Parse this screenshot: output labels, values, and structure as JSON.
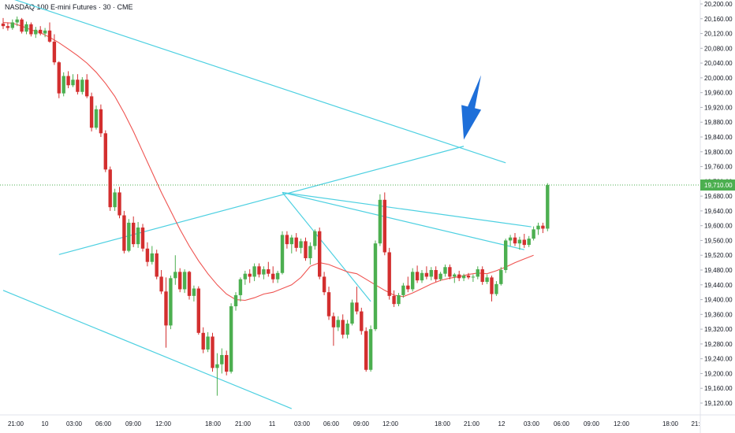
{
  "header": {
    "symbol_title": "NASDAQ 100 E-mini Futures · 30 · CME"
  },
  "colors": {
    "up": "#4caf50",
    "down": "#d32f2f",
    "ma": "#ef5350",
    "trendline": "#4dd0e1",
    "current_price_line": "#4caf50",
    "arrow": "#1e6fd9",
    "axis_border": "#e0e3eb",
    "text": "#131722"
  },
  "chart_data": {
    "type": "candlestick",
    "title": "NASDAQ 100 E-mini Futures · 30 · CME",
    "y_ticks": [
      "20,200.00",
      "20,160.00",
      "20,120.00",
      "20,080.00",
      "20,040.00",
      "20,000.00",
      "19,960.00",
      "19,920.00",
      "19,880.00",
      "19,840.00",
      "19,800.00",
      "19,760.00",
      "19,720.00",
      "19,680.00",
      "19,640.00",
      "19,600.00",
      "19,560.00",
      "19,520.00",
      "19,480.00",
      "19,440.00",
      "19,400.00",
      "19,360.00",
      "19,320.00",
      "19,280.00",
      "19,240.00",
      "19,200.00",
      "19,160.00",
      "19,120.00"
    ],
    "x_ticks": [
      "21:00",
      "10",
      "03:00",
      "06:00",
      "09:00",
      "12:00",
      "18:00",
      "21:00",
      "11",
      "03:00",
      "06:00",
      "09:00",
      "12:00",
      "18:00",
      "21:00",
      "12",
      "03:00",
      "06:00",
      "09:00",
      "12:00",
      "18:00",
      "21:"
    ],
    "ylim": [
      19080,
      20220
    ],
    "current_price": "19,710.00",
    "candles": [
      [
        20147,
        20162,
        20132,
        20140
      ],
      [
        20140,
        20150,
        20128,
        20135
      ],
      [
        20135,
        20158,
        20130,
        20150
      ],
      [
        20150,
        20166,
        20140,
        20158
      ],
      [
        20158,
        20162,
        20120,
        20125
      ],
      [
        20125,
        20152,
        20118,
        20145
      ],
      [
        20145,
        20150,
        20112,
        20118
      ],
      [
        20118,
        20138,
        20108,
        20130
      ],
      [
        20130,
        20140,
        20115,
        20120
      ],
      [
        20120,
        20135,
        20110,
        20128
      ],
      [
        20128,
        20150,
        20095,
        20098
      ],
      [
        20098,
        20118,
        20035,
        20042
      ],
      [
        20042,
        20045,
        19945,
        19958
      ],
      [
        19958,
        20015,
        19950,
        20005
      ],
      [
        20005,
        20018,
        19972,
        19980
      ],
      [
        19980,
        20010,
        19975,
        19995
      ],
      [
        19995,
        20010,
        19955,
        19962
      ],
      [
        19962,
        20002,
        19955,
        19995
      ],
      [
        19995,
        20010,
        19945,
        19950
      ],
      [
        19950,
        19960,
        19855,
        19865
      ],
      [
        19865,
        19925,
        19860,
        19915
      ],
      [
        19915,
        19928,
        19840,
        19850
      ],
      [
        19850,
        19858,
        19745,
        19752
      ],
      [
        19752,
        19760,
        19640,
        19650
      ],
      [
        19650,
        19700,
        19640,
        19690
      ],
      [
        19690,
        19705,
        19620,
        19628
      ],
      [
        19628,
        19640,
        19525,
        19532
      ],
      [
        19532,
        19618,
        19528,
        19608
      ],
      [
        19608,
        19625,
        19542,
        19550
      ],
      [
        19550,
        19610,
        19540,
        19595
      ],
      [
        19595,
        19605,
        19530,
        19538
      ],
      [
        19538,
        19555,
        19490,
        19502
      ],
      [
        19502,
        19545,
        19495,
        19525
      ],
      [
        19525,
        19535,
        19455,
        19462
      ],
      [
        19462,
        19480,
        19415,
        19422
      ],
      [
        19422,
        19460,
        19270,
        19330
      ],
      [
        19330,
        19465,
        19320,
        19458
      ],
      [
        19458,
        19520,
        19440,
        19475
      ],
      [
        19475,
        19485,
        19420,
        19428
      ],
      [
        19428,
        19482,
        19418,
        19475
      ],
      [
        19475,
        19478,
        19400,
        19410
      ],
      [
        19410,
        19438,
        19395,
        19430
      ],
      [
        19430,
        19436,
        19305,
        19310
      ],
      [
        19310,
        19325,
        19255,
        19265
      ],
      [
        19265,
        19312,
        19258,
        19300
      ],
      [
        19300,
        19310,
        19205,
        19215
      ],
      [
        19215,
        19255,
        19140,
        19225
      ],
      [
        19225,
        19268,
        19200,
        19250
      ],
      [
        19250,
        19262,
        19195,
        19205
      ],
      [
        19205,
        19390,
        19200,
        19382
      ],
      [
        19382,
        19420,
        19370,
        19412
      ],
      [
        19412,
        19460,
        19395,
        19455
      ],
      [
        19455,
        19478,
        19440,
        19470
      ],
      [
        19470,
        19482,
        19445,
        19462
      ],
      [
        19462,
        19498,
        19450,
        19490
      ],
      [
        19490,
        19498,
        19460,
        19468
      ],
      [
        19468,
        19490,
        19455,
        19482
      ],
      [
        19482,
        19502,
        19462,
        19470
      ],
      [
        19470,
        19490,
        19445,
        19455
      ],
      [
        19455,
        19478,
        19445,
        19472
      ],
      [
        19472,
        19585,
        19468,
        19575
      ],
      [
        19575,
        19585,
        19538,
        19550
      ],
      [
        19550,
        19575,
        19525,
        19568
      ],
      [
        19568,
        19580,
        19530,
        19540
      ],
      [
        19540,
        19565,
        19525,
        19558
      ],
      [
        19558,
        19568,
        19505,
        19512
      ],
      [
        19512,
        19555,
        19495,
        19545
      ],
      [
        19545,
        19590,
        19535,
        19585
      ],
      [
        19585,
        19595,
        19455,
        19462
      ],
      [
        19462,
        19475,
        19412,
        19420
      ],
      [
        19420,
        19435,
        19345,
        19355
      ],
      [
        19355,
        19365,
        19275,
        19325
      ],
      [
        19325,
        19355,
        19315,
        19345
      ],
      [
        19345,
        19360,
        19295,
        19305
      ],
      [
        19305,
        19345,
        19295,
        19335
      ],
      [
        19335,
        19400,
        19330,
        19392
      ],
      [
        19392,
        19435,
        19360,
        19368
      ],
      [
        19368,
        19378,
        19305,
        19315
      ],
      [
        19315,
        19325,
        19205,
        19210
      ],
      [
        19210,
        19330,
        19205,
        19320
      ],
      [
        19320,
        19560,
        19315,
        19552
      ],
      [
        19552,
        19685,
        19545,
        19670
      ],
      [
        19670,
        19690,
        19520,
        19528
      ],
      [
        19528,
        19540,
        19400,
        19410
      ],
      [
        19410,
        19425,
        19380,
        19388
      ],
      [
        19388,
        19418,
        19382,
        19412
      ],
      [
        19412,
        19445,
        19405,
        19438
      ],
      [
        19438,
        19462,
        19420,
        19428
      ],
      [
        19428,
        19485,
        19422,
        19475
      ],
      [
        19475,
        19492,
        19445,
        19452
      ],
      [
        19452,
        19480,
        19445,
        19472
      ],
      [
        19472,
        19490,
        19455,
        19462
      ],
      [
        19462,
        19488,
        19452,
        19480
      ],
      [
        19480,
        19490,
        19448,
        19455
      ],
      [
        19455,
        19475,
        19450,
        19470
      ],
      [
        19470,
        19495,
        19462,
        19488
      ],
      [
        19488,
        19495,
        19455,
        19462
      ],
      [
        19462,
        19472,
        19445,
        19468
      ],
      [
        19468,
        19478,
        19450,
        19458
      ],
      [
        19458,
        19470,
        19450,
        19465
      ],
      [
        19465,
        19472,
        19455,
        19460
      ],
      [
        19460,
        19468,
        19448,
        19462
      ],
      [
        19462,
        19490,
        19455,
        19482
      ],
      [
        19482,
        19490,
        19440,
        19448
      ],
      [
        19448,
        19468,
        19442,
        19460
      ],
      [
        19460,
        19465,
        19395,
        19415
      ],
      [
        19415,
        19450,
        19410,
        19442
      ],
      [
        19442,
        19488,
        19438,
        19480
      ],
      [
        19480,
        19565,
        19472,
        19560
      ],
      [
        19560,
        19575,
        19545,
        19568
      ],
      [
        19568,
        19580,
        19545,
        19552
      ],
      [
        19552,
        19570,
        19535,
        19562
      ],
      [
        19562,
        19578,
        19540,
        19548
      ],
      [
        19548,
        19572,
        19542,
        19565
      ],
      [
        19565,
        19598,
        19560,
        19590
      ],
      [
        19590,
        19608,
        19575,
        19600
      ],
      [
        19600,
        19608,
        19580,
        19592
      ],
      [
        19592,
        19715,
        19585,
        19710
      ]
    ],
    "moving_average": [
      20150,
      20148,
      20140,
      20130,
      20122,
      20110,
      20095,
      20078,
      20060,
      20040,
      20015,
      19985,
      19950,
      19905,
      19855,
      19800,
      19745,
      19690,
      19640,
      19590,
      19545,
      19505,
      19470,
      19440,
      19415,
      19400,
      19398,
      19405,
      19415,
      19420,
      19430,
      19440,
      19460,
      19490,
      19500,
      19495,
      19485,
      19475,
      19470,
      19455,
      19440,
      19425,
      19412,
      19408,
      19418,
      19430,
      19442,
      19452,
      19458,
      19462,
      19468,
      19472,
      19470,
      19478,
      19488,
      19500,
      19510,
      19520
    ],
    "ma_start_index": 0,
    "ma_step": 2,
    "trendlines": [
      {
        "x1": 0,
        "y1": 20222,
        "x2": 108,
        "y2": 19770
      },
      {
        "x1": 0,
        "y1": 19425,
        "x2": 62,
        "y2": 19105
      },
      {
        "x1": 12,
        "y1": 19522,
        "x2": 99,
        "y2": 19815
      },
      {
        "x1": 60,
        "y1": 19690,
        "x2": 113.5,
        "y2": 19597
      },
      {
        "x1": 60,
        "y1": 19690,
        "x2": 112,
        "y2": 19535
      },
      {
        "x1": 60,
        "y1": 19690,
        "x2": 79,
        "y2": 19395
      }
    ],
    "arrow": {
      "x": 99,
      "y": 19820
    }
  }
}
